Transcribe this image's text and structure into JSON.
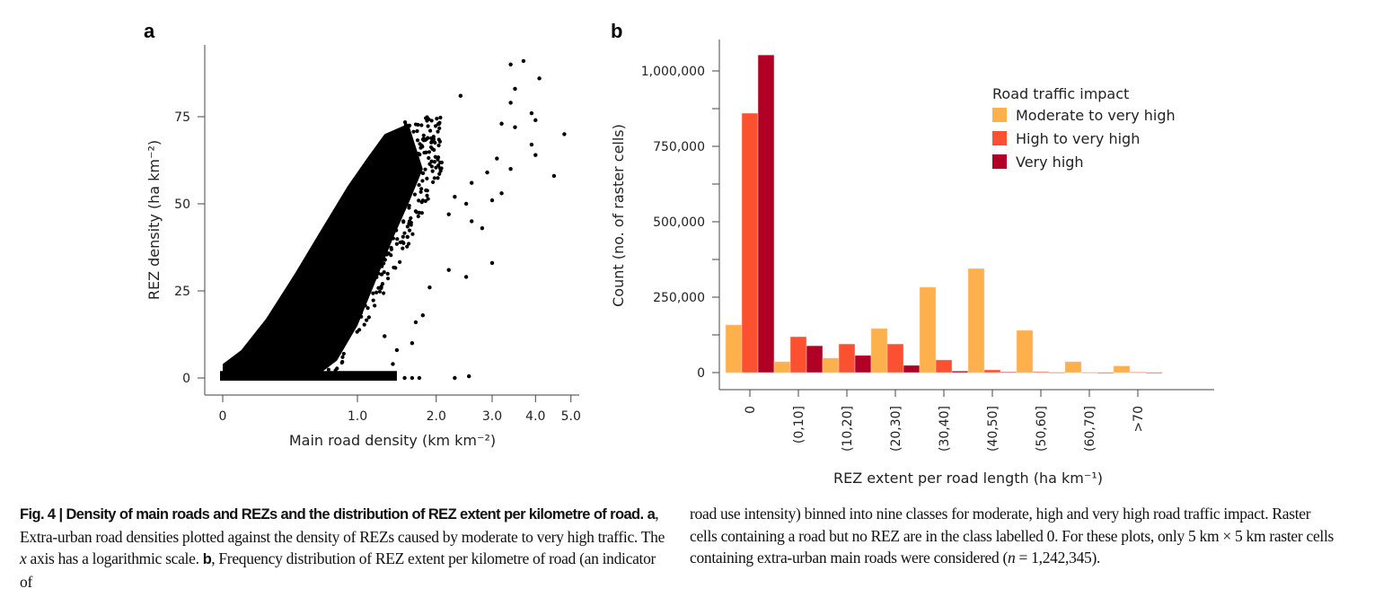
{
  "figure": {
    "panel_a_label": "a",
    "panel_b_label": "b",
    "caption": {
      "fig_label": "Fig. 4 | ",
      "title": "Density of main roads and REZs and the distribution of REZ extent per kilometre of road.",
      "a_label": "a",
      "a_text": ", Extra-urban road densities plotted against the density of REZs caused by moderate to very high traffic. The ",
      "a_italic": "x",
      "a_text2": " axis has a logarithmic scale.",
      "b_label": "b",
      "b_text": ", Frequency distribution of REZ extent per kilometre of road (an indicator of road use intensity) binned into nine classes for moderate, high and very high road traffic impact. Raster cells containing a road but no REZ are in the class labelled 0. For these plots, only 5 km × 5 km raster cells containing extra-urban main roads were considered (",
      "b_italic": "n",
      "b_text2": " = 1,242,345)."
    }
  },
  "chart_data": [
    {
      "type": "scatter",
      "panel": "a",
      "title": "",
      "xlabel": "Main road density (km km⁻²)",
      "ylabel": "REZ density (ha km⁻²)",
      "x_scale": "log1p",
      "x_ticks": [
        0,
        1.0,
        2.0,
        3.0,
        4.0,
        5.0
      ],
      "x_tick_labels": [
        "0",
        "1.0",
        "2.0",
        "3.0",
        "4.0",
        "5.0"
      ],
      "y_ticks": [
        0,
        25,
        50,
        75
      ],
      "y_tick_labels": [
        "0",
        "25",
        "50",
        "75"
      ],
      "xlim": [
        0,
        5.0
      ],
      "ylim": [
        -4,
        92
      ],
      "grid": false,
      "description": "Dense cloud of ~1.24 million points; REZ density increases roughly linearly with main road density up to ~1.5 km/km2, with sparse outliers up to ~90 ha/km2 near 3.5-4 km/km2.",
      "envelope": {
        "upper_edge": [
          [
            0,
            4
          ],
          [
            0.1,
            8
          ],
          [
            0.25,
            17
          ],
          [
            0.45,
            30
          ],
          [
            0.65,
            42
          ],
          [
            0.9,
            55
          ],
          [
            1.1,
            63
          ],
          [
            1.3,
            70
          ],
          [
            1.6,
            73
          ]
        ],
        "lower_edge": [
          [
            0,
            0
          ],
          [
            0.6,
            0
          ],
          [
            0.8,
            5
          ],
          [
            1.0,
            15
          ],
          [
            1.2,
            28
          ],
          [
            1.4,
            40
          ],
          [
            1.6,
            50
          ],
          [
            1.8,
            60
          ]
        ]
      },
      "outliers": [
        [
          3.4,
          90
        ],
        [
          3.7,
          91
        ],
        [
          4.1,
          86
        ],
        [
          3.5,
          83
        ],
        [
          2.4,
          81
        ],
        [
          3.4,
          79
        ],
        [
          3.9,
          76
        ],
        [
          4.0,
          74
        ],
        [
          3.2,
          73
        ],
        [
          3.5,
          72
        ],
        [
          4.8,
          70
        ],
        [
          3.9,
          67
        ],
        [
          4.0,
          64
        ],
        [
          3.1,
          63
        ],
        [
          3.4,
          60
        ],
        [
          4.5,
          58
        ],
        [
          2.9,
          59
        ],
        [
          2.6,
          56
        ],
        [
          3.2,
          53
        ],
        [
          3.0,
          51
        ],
        [
          2.3,
          52
        ],
        [
          2.5,
          50
        ],
        [
          2.2,
          47
        ],
        [
          2.6,
          45
        ],
        [
          2.8,
          43
        ],
        [
          3.0,
          33
        ],
        [
          2.5,
          29
        ],
        [
          2.2,
          31
        ],
        [
          1.9,
          26
        ],
        [
          1.8,
          18
        ],
        [
          1.7,
          16
        ],
        [
          1.65,
          10
        ],
        [
          1.45,
          8
        ],
        [
          1.3,
          12
        ],
        [
          1.4,
          4
        ],
        [
          1.55,
          0
        ],
        [
          1.65,
          0
        ],
        [
          1.75,
          0
        ],
        [
          2.3,
          0
        ],
        [
          2.55,
          0.5
        ]
      ]
    },
    {
      "type": "bar",
      "panel": "b",
      "title": "",
      "xlabel": "REZ extent per road length (ha km⁻¹)",
      "ylabel": "Count (no. of raster cells)",
      "categories": [
        "0",
        "(0,10]",
        "(10,20]",
        "(20,30]",
        "(30,40]",
        "(40,50]",
        "(50,60]",
        "(60,70]",
        ">70"
      ],
      "y_ticks": [
        0,
        250000,
        500000,
        750000,
        1000000
      ],
      "y_tick_labels": [
        "0",
        "250,000",
        "500,000",
        "750,000",
        "1,000,000"
      ],
      "y_minor_ticks": [
        125000,
        375000,
        625000,
        875000
      ],
      "ylim": [
        -60000,
        1100000
      ],
      "legend_title": "Road traffic impact",
      "legend_position": "top-right",
      "grid": false,
      "series": [
        {
          "name": "Moderate to very high",
          "color": "#FDB04B",
          "values": [
            158000,
            36000,
            48000,
            146000,
            283000,
            345000,
            140000,
            36000,
            22000
          ]
        },
        {
          "name": "High to very high",
          "color": "#FC5130",
          "values": [
            860000,
            119000,
            95000,
            95000,
            42000,
            9000,
            3000,
            1000,
            1500
          ]
        },
        {
          "name": "Very high",
          "color": "#B10026",
          "values": [
            1053000,
            89000,
            57000,
            24000,
            5000,
            2000,
            1000,
            500,
            500
          ]
        }
      ]
    }
  ]
}
